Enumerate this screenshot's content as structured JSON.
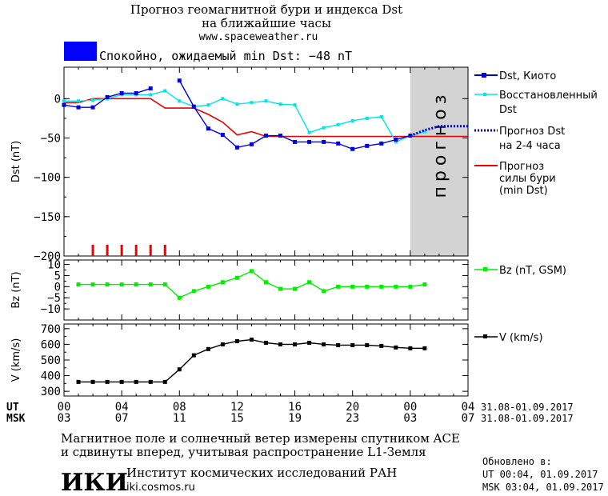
{
  "header": {
    "title_line1": "Прогноз геомагнитной бури и индекса Dst",
    "title_line2": "на ближайшие часы",
    "site": "www.spaceweather.ru",
    "status": "Спокойно, ожидаемый min Dst: −48 nT"
  },
  "colors": {
    "dst_kyoto": "#0000dd",
    "dst_restored": "#00e5e5",
    "dst_forecast": "#0000cc",
    "storm": "#ee0000",
    "bz": "#00ee00",
    "v": "#000000",
    "forecast_band": "#d3d3d3",
    "status_box": "#0000ff"
  },
  "forecast_band_label": "прогноз",
  "legend": {
    "dst_kyoto": "Dst, Киото",
    "dst_restored_1": "Восстановленный",
    "dst_restored_2": "Dst",
    "dst_forecast_1": "Прогноз Dst",
    "dst_forecast_2": "на 2-4 часа",
    "storm_1": "Прогноз",
    "storm_2": "силы бури",
    "storm_3": "(min Dst)",
    "bz": "Bz (nT, GSM)",
    "v": "V (km/s)"
  },
  "time_axis": {
    "ut_label": "UT",
    "msk_label": "MSK",
    "ut_ticks": [
      "00",
      "04",
      "08",
      "12",
      "16",
      "20",
      "00",
      "04"
    ],
    "msk_ticks": [
      "03",
      "07",
      "11",
      "15",
      "19",
      "23",
      "03",
      "07"
    ],
    "ut_range": "31.08-01.09.2017",
    "msk_range": "31.08-01.09.2017"
  },
  "chart_data": [
    {
      "type": "line",
      "ylabel": "Dst (nT)",
      "ylim": [
        -200,
        40
      ],
      "yticks": [
        0,
        -50,
        -100,
        -150,
        -200
      ],
      "xlim": [
        0,
        28
      ],
      "forecast_region": [
        24,
        28
      ],
      "series": [
        {
          "name": "Dst, Киото",
          "x": [
            0,
            1,
            2,
            3,
            4,
            5,
            6,
            7,
            8,
            9,
            10,
            11,
            12,
            13,
            14,
            15,
            16,
            17,
            18,
            19,
            20,
            21,
            22,
            23,
            24
          ],
          "y": [
            -8,
            -11,
            -11,
            2,
            7,
            7,
            13,
            null,
            23,
            -10,
            -38,
            -46,
            -62,
            -58,
            -47,
            -47,
            -55,
            -55,
            -55,
            -57,
            -64,
            -60,
            -57,
            -52,
            -47
          ]
        },
        {
          "name": "Восстановленный Dst",
          "x": [
            0,
            1,
            2,
            3,
            4,
            5,
            6,
            7,
            8,
            9,
            10,
            11,
            12,
            13,
            14,
            15,
            16,
            17,
            18,
            19,
            20,
            21,
            22,
            23,
            24,
            25
          ],
          "y": [
            -3,
            -3,
            -2,
            0,
            5,
            5,
            5,
            10,
            -3,
            -10,
            -8,
            0,
            -7,
            -5,
            -3,
            -7,
            -8,
            -43,
            -37,
            -33,
            -28,
            -25,
            -23,
            -55,
            -47,
            -42
          ]
        },
        {
          "name": "Прогноз Dst на 2-4 часа",
          "x": [
            24,
            25,
            26,
            27,
            28
          ],
          "y": [
            -47,
            -40,
            -35,
            -35,
            -35
          ]
        },
        {
          "name": "Прогноз силы бури (min Dst)",
          "x": [
            0,
            1,
            2,
            3,
            4,
            5,
            6,
            7,
            8,
            9,
            10,
            11,
            12,
            13,
            14,
            15,
            16,
            17,
            18,
            19,
            20,
            21,
            22,
            23,
            24,
            25,
            26,
            27,
            28
          ],
          "y": [
            -5,
            -5,
            0,
            0,
            0,
            0,
            0,
            -12,
            -12,
            -12,
            -20,
            -30,
            -46,
            -42,
            -48,
            -48,
            -48,
            -48,
            -48,
            -48,
            -48,
            -48,
            -48,
            -48,
            -48,
            -48,
            -48,
            -48,
            -48
          ]
        }
      ],
      "storm_bars_x": [
        2,
        3,
        4,
        5,
        6,
        7
      ]
    },
    {
      "type": "line",
      "ylabel": "Bz (nT)",
      "ylim": [
        -15,
        12
      ],
      "yticks": [
        10,
        5,
        0,
        -5,
        -10
      ],
      "xlim": [
        0,
        28
      ],
      "series": [
        {
          "name": "Bz (nT, GSM)",
          "x": [
            1,
            2,
            3,
            4,
            5,
            6,
            7,
            8,
            9,
            10,
            11,
            12,
            13,
            14,
            15,
            16,
            17,
            18,
            19,
            20,
            21,
            22,
            23,
            24,
            25
          ],
          "y": [
            1,
            1,
            1,
            1,
            1,
            1,
            1,
            -5,
            -2,
            0,
            2,
            4,
            7,
            2,
            -1,
            -1,
            2,
            -2,
            0,
            0,
            0,
            0,
            0,
            0,
            1
          ]
        }
      ]
    },
    {
      "type": "line",
      "ylabel": "V (km/s)",
      "ylim": [
        270,
        730
      ],
      "yticks": [
        700,
        600,
        500,
        400,
        300
      ],
      "xlim": [
        0,
        28
      ],
      "series": [
        {
          "name": "V (km/s)",
          "x": [
            1,
            2,
            3,
            4,
            5,
            6,
            7,
            8,
            9,
            10,
            11,
            12,
            13,
            14,
            15,
            16,
            17,
            18,
            19,
            20,
            21,
            22,
            23,
            24,
            25
          ],
          "y": [
            360,
            360,
            360,
            360,
            360,
            360,
            360,
            440,
            530,
            570,
            600,
            620,
            630,
            610,
            600,
            600,
            610,
            600,
            595,
            595,
            595,
            590,
            580,
            575,
            575
          ]
        }
      ]
    }
  ],
  "footer": {
    "note_line1": "Магнитное поле и солнечный ветер измерены спутником ACE",
    "note_line2": "и сдвинуты вперед, учитывая распространение L1-Земля",
    "logo_text": "ИКИ",
    "institute": "Институт космических исследований РАН",
    "site": "iki.cosmos.ru",
    "updated_label": "Обновлено в:",
    "updated_ut": "UT  00:04, 01.09.2017",
    "updated_msk": "MSK 03:04, 01.09.2017"
  }
}
